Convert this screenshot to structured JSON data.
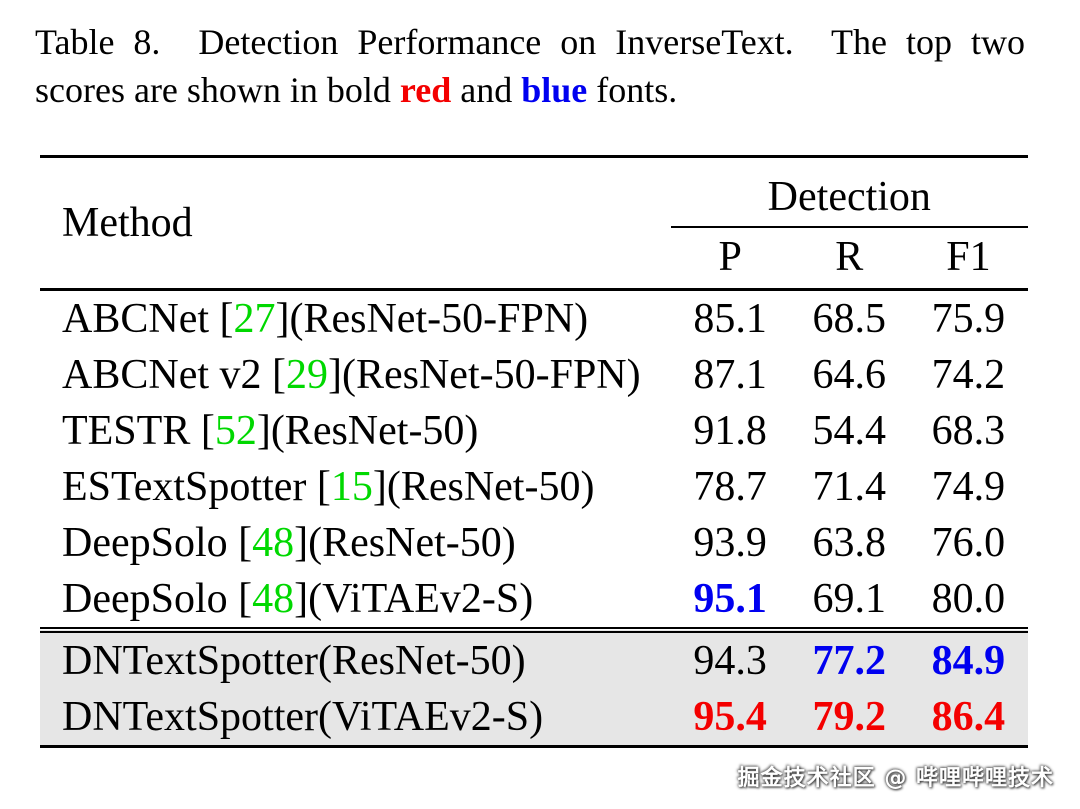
{
  "caption": {
    "line1": "Table 8.  Detection Performance on InverseText.  The top two",
    "line2_prefix": "scores are shown in bold ",
    "red_word": "red",
    "line2_middle": " and ",
    "blue_word": "blue",
    "line2_suffix": " fonts."
  },
  "table": {
    "method_header": "Method",
    "group_header": "Detection",
    "sub_columns": [
      "P",
      "R",
      "F1"
    ],
    "rows": [
      {
        "method_pre": "ABCNet [",
        "ref": "27",
        "method_post": "](ResNet-50-FPN)",
        "highlight": false,
        "cells": [
          {
            "v": "85.1",
            "s": "normal"
          },
          {
            "v": "68.5",
            "s": "normal"
          },
          {
            "v": "75.9",
            "s": "normal"
          }
        ]
      },
      {
        "method_pre": "ABCNet v2 [",
        "ref": "29",
        "method_post": "](ResNet-50-FPN)",
        "highlight": false,
        "cells": [
          {
            "v": "87.1",
            "s": "normal"
          },
          {
            "v": "64.6",
            "s": "normal"
          },
          {
            "v": "74.2",
            "s": "normal"
          }
        ]
      },
      {
        "method_pre": "TESTR [",
        "ref": "52",
        "method_post": "](ResNet-50)",
        "highlight": false,
        "cells": [
          {
            "v": "91.8",
            "s": "normal"
          },
          {
            "v": "54.4",
            "s": "normal"
          },
          {
            "v": "68.3",
            "s": "normal"
          }
        ]
      },
      {
        "method_pre": "ESTextSpotter [",
        "ref": "15",
        "method_post": "](ResNet-50)",
        "highlight": false,
        "cells": [
          {
            "v": "78.7",
            "s": "normal"
          },
          {
            "v": "71.4",
            "s": "normal"
          },
          {
            "v": "74.9",
            "s": "normal"
          }
        ]
      },
      {
        "method_pre": "DeepSolo [",
        "ref": "48",
        "method_post": "](ResNet-50)",
        "highlight": false,
        "cells": [
          {
            "v": "93.9",
            "s": "normal"
          },
          {
            "v": "63.8",
            "s": "normal"
          },
          {
            "v": "76.0",
            "s": "normal"
          }
        ]
      },
      {
        "method_pre": "DeepSolo [",
        "ref": "48",
        "method_post": "](ViTAEv2-S)",
        "highlight": false,
        "cells": [
          {
            "v": "95.1",
            "s": "blue"
          },
          {
            "v": "69.1",
            "s": "normal"
          },
          {
            "v": "80.0",
            "s": "normal"
          }
        ]
      },
      {
        "method_pre": "DNTextSpotter(ResNet-50)",
        "ref": "",
        "method_post": "",
        "highlight": true,
        "cells": [
          {
            "v": "94.3",
            "s": "normal"
          },
          {
            "v": "77.2",
            "s": "blue"
          },
          {
            "v": "84.9",
            "s": "blue"
          }
        ]
      },
      {
        "method_pre": "DNTextSpotter(ViTAEv2-S)",
        "ref": "",
        "method_post": "",
        "highlight": true,
        "cells": [
          {
            "v": "95.4",
            "s": "red"
          },
          {
            "v": "79.2",
            "s": "red"
          },
          {
            "v": "86.4",
            "s": "red"
          }
        ]
      }
    ]
  },
  "watermark": "掘金技术社区 @ 哔哩哔哩技术",
  "colors": {
    "citation_green": "#00d800",
    "top1_red": "#f40000",
    "top2_blue": "#0000f0",
    "highlight_bg": "#e6e6e6",
    "rule_black": "#000000"
  }
}
